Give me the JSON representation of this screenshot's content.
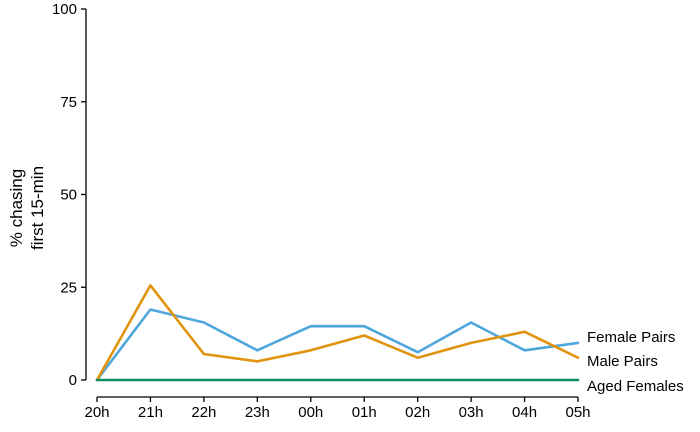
{
  "chart_data": {
    "type": "line",
    "x": [
      "20h",
      "21h",
      "22h",
      "23h",
      "00h",
      "01h",
      "02h",
      "03h",
      "04h",
      "05h"
    ],
    "ylabel_lines": [
      "% chasing",
      "first 15-min"
    ],
    "xlabel": "",
    "title": "",
    "ylim": [
      0,
      100
    ],
    "yticks": [
      0,
      25,
      50,
      75,
      100
    ],
    "grid": false,
    "legend": "series names labelled at right end of lines",
    "series": [
      {
        "name": "Female Pairs",
        "color": "#4ea6dc",
        "values": [
          0,
          19,
          15.5,
          8,
          14.5,
          14.5,
          7.5,
          15.5,
          8,
          10
        ]
      },
      {
        "name": "Male Pairs",
        "color": "#e0940e",
        "values": [
          0,
          25.5,
          7,
          5,
          8,
          12,
          6,
          10,
          13,
          6
        ]
      },
      {
        "name": "Aged Females",
        "color": "#0e8f5e",
        "values": [
          0,
          0,
          0,
          0,
          0,
          0,
          0,
          0,
          0,
          0
        ]
      }
    ]
  }
}
